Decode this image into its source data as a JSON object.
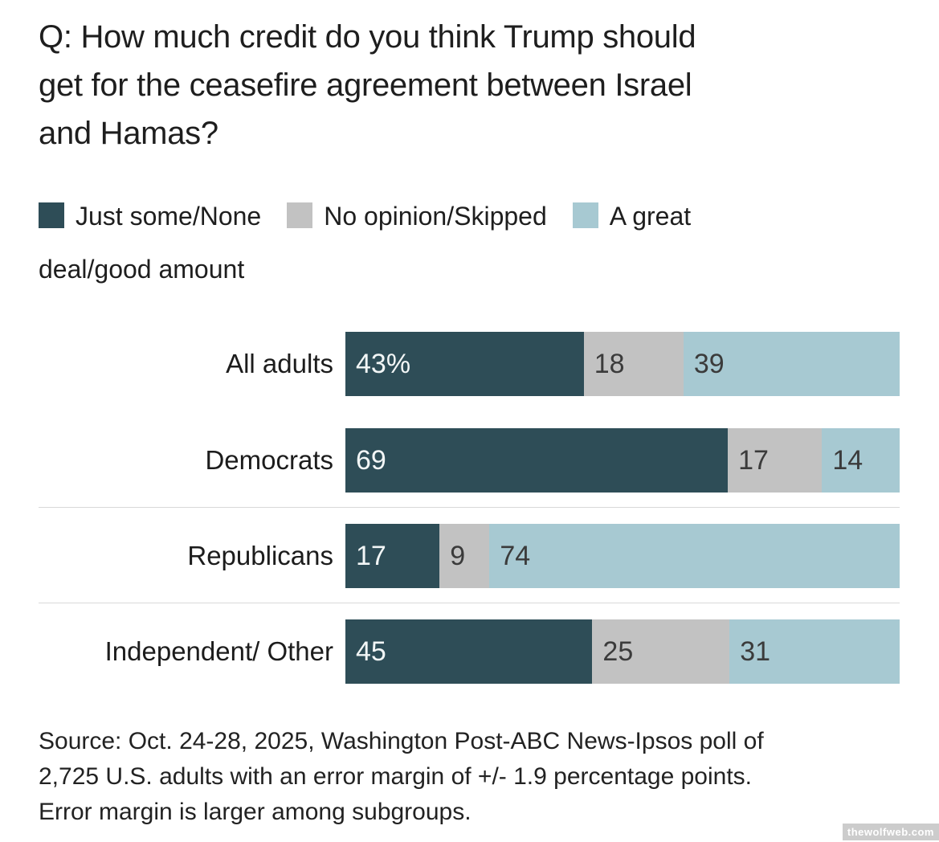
{
  "header": {
    "title_lines": [
      "Q: How much credit do you think Trump should",
      "get for the ceasefire agreement between Israel",
      "and Hamas?"
    ]
  },
  "legend": {
    "items": [
      {
        "label": "Just some/None"
      },
      {
        "label": "No opinion/Skipped"
      },
      {
        "label_lines": [
          "A great",
          "deal/good amount"
        ]
      }
    ]
  },
  "chart_data": {
    "type": "bar",
    "orientation": "horizontal",
    "stacked": true,
    "title": "Q: How much credit do you think Trump should get for the ceasefire agreement between Israel and Hamas?",
    "categories": [
      "All adults",
      "Democrats",
      "Republicans",
      "Independent/ Other"
    ],
    "series": [
      {
        "name": "Just some/None",
        "color": "#2e4d57",
        "values": [
          43,
          69,
          17,
          45
        ]
      },
      {
        "name": "No opinion/Skipped",
        "color": "#c2c2c2",
        "values": [
          18,
          17,
          9,
          25
        ]
      },
      {
        "name": "A great deal/good amount",
        "color": "#a7c9d2",
        "values": [
          39,
          14,
          74,
          31
        ]
      }
    ],
    "rows": [
      {
        "label": "All adults",
        "values": [
          43,
          18,
          39
        ],
        "display": [
          "43%",
          "18",
          "39"
        ]
      },
      {
        "label": "Democrats",
        "values": [
          69,
          17,
          14
        ],
        "display": [
          "69",
          "17",
          "14"
        ]
      },
      {
        "label": "Republicans",
        "values": [
          17,
          9,
          74
        ],
        "display": [
          "17",
          "9",
          "74"
        ]
      },
      {
        "label": "Independent/ Other",
        "values": [
          45,
          25,
          31
        ],
        "display": [
          "45",
          "25",
          "31"
        ]
      }
    ],
    "value_unit": "percent",
    "legend_position": "top",
    "grid": false
  },
  "footer": {
    "source_lines": [
      "Source: Oct. 24-28, 2025, Washington Post-ABC News-Ipsos poll of",
      "2,725 U.S. adults with an error margin of +/- 1.9 percentage points.",
      "Error margin is larger among subgroups."
    ],
    "watermark": "thewolfweb.com"
  }
}
